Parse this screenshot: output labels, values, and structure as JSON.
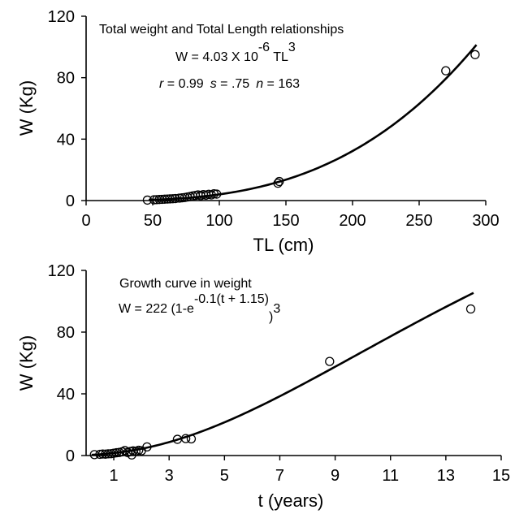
{
  "chart_data": [
    {
      "type": "scatter",
      "title": "Total weight and Total Length relationships",
      "equation": {
        "prefix": "W = 4.03 X 10",
        "exp": "-6",
        "mid": " TL",
        "exp2": "3"
      },
      "stats": {
        "r_sym": "r",
        "r_val": " = 0.99",
        "s_sym": "s",
        "s_val": " = .75",
        "n_sym": "n",
        "n_val": " = 163"
      },
      "xlabel": "TL (cm)",
      "ylabel": "W (Kg)",
      "xlim": [
        0,
        300
      ],
      "ylim": [
        0,
        120
      ],
      "xticks": [
        0,
        50,
        100,
        150,
        200,
        250,
        300
      ],
      "yticks": [
        0,
        40,
        80,
        120
      ],
      "grid": false,
      "fit": {
        "a": 4.03e-06,
        "b": 3,
        "x_range": [
          47,
          293
        ]
      },
      "points": [
        [
          46,
          0.3
        ],
        [
          51,
          0.5
        ],
        [
          53,
          0.6
        ],
        [
          55,
          0.7
        ],
        [
          57,
          0.8
        ],
        [
          59,
          0.9
        ],
        [
          61,
          1.0
        ],
        [
          63,
          1.1
        ],
        [
          65,
          1.2
        ],
        [
          67,
          1.3
        ],
        [
          70,
          1.6
        ],
        [
          72,
          1.8
        ],
        [
          74,
          2.0
        ],
        [
          76,
          2.3
        ],
        [
          78,
          2.6
        ],
        [
          80,
          3.0
        ],
        [
          82,
          3.3
        ],
        [
          84,
          3.7
        ],
        [
          86,
          3.2
        ],
        [
          88,
          3.9
        ],
        [
          90,
          3.5
        ],
        [
          92,
          4.1
        ],
        [
          94,
          3.7
        ],
        [
          96,
          4.4
        ],
        [
          98,
          4.2
        ],
        [
          144,
          11.3
        ],
        [
          145,
          12.4
        ],
        [
          270,
          84.5
        ],
        [
          292,
          95.0
        ]
      ]
    },
    {
      "type": "scatter",
      "title": "Growth curve in weight",
      "equation": {
        "prefix": "W = 222  (1-e",
        "exp": "-0.1(t + 1.15)",
        "suffix": ")",
        "exp2": "3"
      },
      "xlabel": "t (years)",
      "ylabel": "W (Kg)",
      "xlim": [
        0,
        15
      ],
      "ylim": [
        0,
        120
      ],
      "xticks": [
        1,
        3,
        5,
        7,
        9,
        11,
        13,
        15
      ],
      "yticks": [
        0,
        40,
        80,
        120
      ],
      "grid": false,
      "fit": {
        "winf": 222,
        "k": 0.1,
        "t0": -1.15,
        "b": 3,
        "x_range": [
          0.2,
          14.0
        ]
      },
      "points": [
        [
          0.3,
          0.6
        ],
        [
          0.5,
          0.8
        ],
        [
          0.6,
          1.0
        ],
        [
          0.7,
          0.9
        ],
        [
          0.8,
          1.1
        ],
        [
          0.9,
          1.2
        ],
        [
          1.0,
          1.5
        ],
        [
          1.1,
          1.8
        ],
        [
          1.2,
          2.0
        ],
        [
          1.3,
          2.4
        ],
        [
          1.4,
          3.2
        ],
        [
          1.5,
          2.0
        ],
        [
          1.6,
          2.6
        ],
        [
          1.7,
          3.0
        ],
        [
          1.8,
          2.7
        ],
        [
          1.9,
          3.4
        ],
        [
          2.0,
          3.1
        ],
        [
          2.2,
          5.6
        ],
        [
          1.65,
          0.4
        ],
        [
          3.3,
          10.5
        ],
        [
          3.6,
          11.0
        ],
        [
          3.8,
          10.8
        ],
        [
          8.8,
          61.0
        ],
        [
          13.9,
          95.0
        ]
      ]
    }
  ]
}
